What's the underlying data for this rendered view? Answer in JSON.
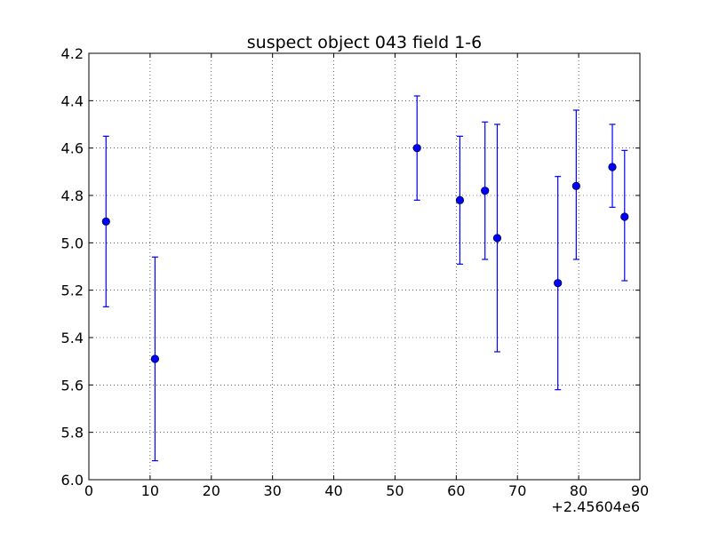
{
  "chart_data": {
    "type": "scatter",
    "title": "suspect object 043 field 1-6",
    "xlabel": "",
    "ylabel": "",
    "x_offset_label": "+2.45604e6",
    "xlim": [
      0,
      90
    ],
    "ylim": [
      4.2,
      6.0
    ],
    "y_inverted": true,
    "grid": true,
    "grid_style": "dotted",
    "x_ticks": [
      0,
      10,
      20,
      30,
      40,
      50,
      60,
      70,
      80,
      90
    ],
    "y_ticks": [
      4.2,
      4.4,
      4.6,
      4.8,
      5.0,
      5.2,
      5.4,
      5.6,
      5.8,
      6.0
    ],
    "x_tick_labels": [
      "0",
      "10",
      "20",
      "30",
      "40",
      "50",
      "60",
      "70",
      "80",
      "90"
    ],
    "y_tick_labels": [
      "4.2",
      "4.4",
      "4.6",
      "4.8",
      "5.0",
      "5.2",
      "5.4",
      "5.6",
      "5.8",
      "6.0"
    ],
    "series": [
      {
        "marker_color": "#0000ff",
        "errorbar_color": "#0000ff",
        "points": [
          {
            "x": 2.8,
            "y": 4.91,
            "ylow": 4.55,
            "yhigh": 5.27
          },
          {
            "x": 10.8,
            "y": 5.49,
            "ylow": 5.06,
            "yhigh": 5.92
          },
          {
            "x": 53.6,
            "y": 4.6,
            "ylow": 4.38,
            "yhigh": 4.82
          },
          {
            "x": 60.6,
            "y": 4.82,
            "ylow": 4.55,
            "yhigh": 5.09
          },
          {
            "x": 64.7,
            "y": 4.78,
            "ylow": 4.49,
            "yhigh": 5.07
          },
          {
            "x": 66.7,
            "y": 4.98,
            "ylow": 4.5,
            "yhigh": 5.46
          },
          {
            "x": 76.6,
            "y": 5.17,
            "ylow": 4.72,
            "yhigh": 5.62
          },
          {
            "x": 79.6,
            "y": 4.76,
            "ylow": 4.44,
            "yhigh": 5.07
          },
          {
            "x": 85.5,
            "y": 4.68,
            "ylow": 4.5,
            "yhigh": 4.85
          },
          {
            "x": 87.5,
            "y": 4.89,
            "ylow": 4.61,
            "yhigh": 5.16
          }
        ]
      }
    ]
  }
}
